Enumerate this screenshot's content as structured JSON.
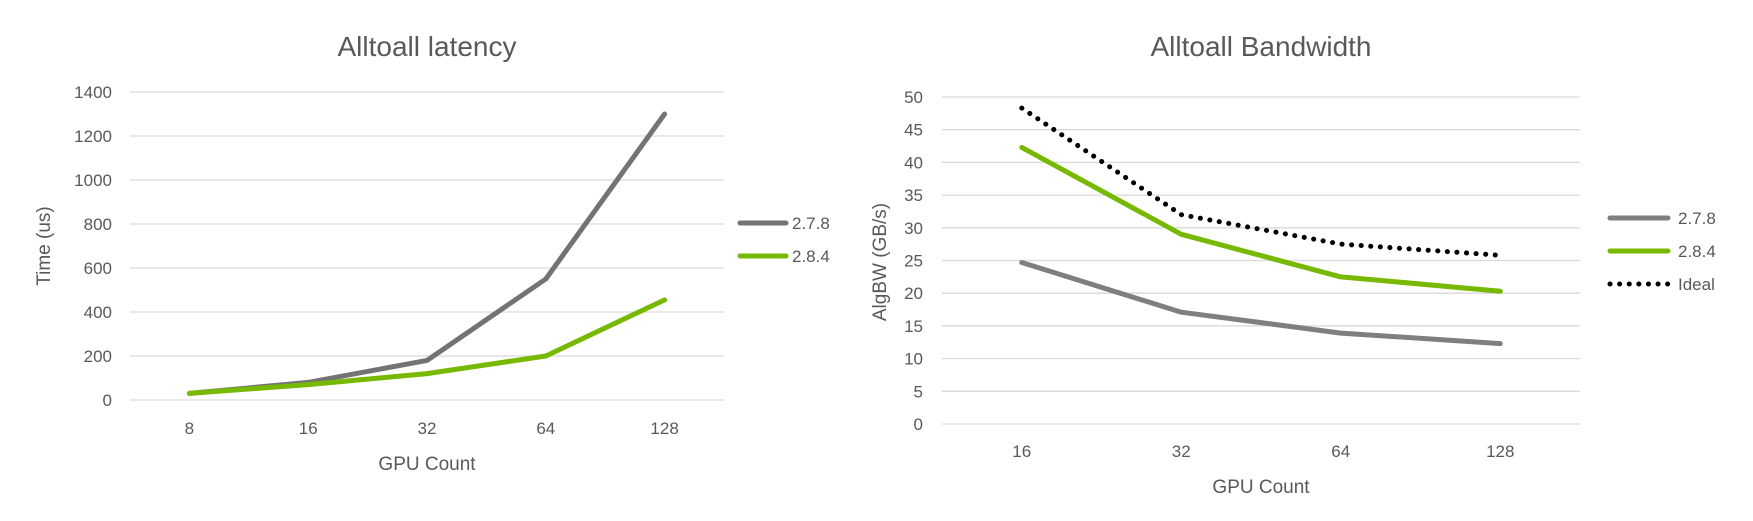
{
  "chart_data": [
    {
      "type": "line",
      "title": "Alltoall latency",
      "xlabel": "GPU Count",
      "ylabel": "Time (us)",
      "categories": [
        "8",
        "16",
        "32",
        "64",
        "128"
      ],
      "yticks": [
        "0",
        "200",
        "400",
        "600",
        "800",
        "1000",
        "1200",
        "1400"
      ],
      "ylim": [
        0,
        1400
      ],
      "grid": true,
      "legend_position": "right",
      "series": [
        {
          "name": "2.7.8",
          "color": "#737373",
          "style": "solid",
          "values": [
            30,
            80,
            180,
            550,
            1300
          ]
        },
        {
          "name": "2.8.4",
          "color": "#76b900",
          "style": "solid",
          "values": [
            30,
            70,
            120,
            200,
            455
          ]
        }
      ]
    },
    {
      "type": "line",
      "title": "Alltoall Bandwidth",
      "xlabel": "GPU Count",
      "ylabel": "AlgBW (GB/s)",
      "categories": [
        "16",
        "32",
        "64",
        "128"
      ],
      "yticks": [
        "0",
        "5",
        "10",
        "15",
        "20",
        "25",
        "30",
        "35",
        "40",
        "45",
        "50"
      ],
      "ylim": [
        0,
        50
      ],
      "grid": true,
      "legend_position": "right",
      "series": [
        {
          "name": "2.7.8",
          "color": "#7f7f7f",
          "style": "solid",
          "values": [
            24.7,
            17.1,
            13.9,
            12.3
          ]
        },
        {
          "name": "2.8.4",
          "color": "#76b900",
          "style": "solid",
          "values": [
            42.3,
            29.0,
            22.5,
            20.3
          ]
        },
        {
          "name": "Ideal",
          "color": "#000000",
          "style": "dotted",
          "values": [
            48.3,
            32.0,
            27.5,
            25.8
          ]
        }
      ]
    }
  ]
}
